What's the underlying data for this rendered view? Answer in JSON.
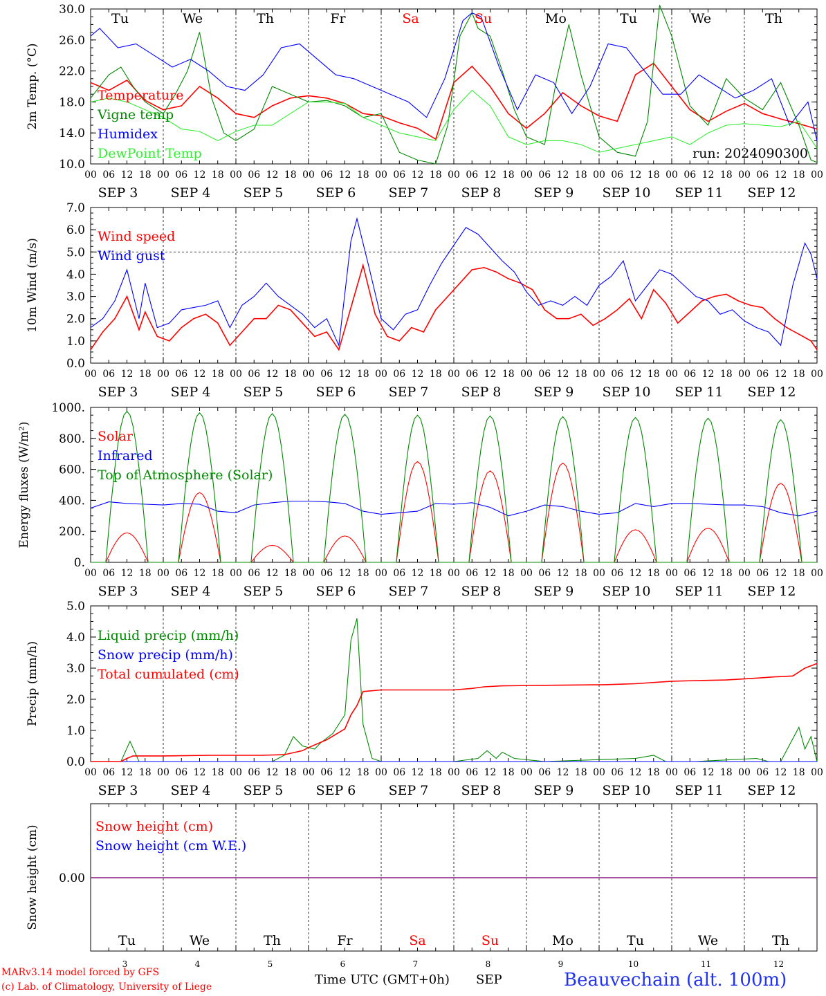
{
  "days": [
    {
      "name": "Tu",
      "weekend": false,
      "date": "SEP   3",
      "num": "3"
    },
    {
      "name": "We",
      "weekend": false,
      "date": "SEP   4",
      "num": "4"
    },
    {
      "name": "Th",
      "weekend": false,
      "date": "SEP   5",
      "num": "5"
    },
    {
      "name": "Fr",
      "weekend": false,
      "date": "SEP   6",
      "num": "6"
    },
    {
      "name": "Sa",
      "weekend": true,
      "date": "SEP   7",
      "num": "7"
    },
    {
      "name": "Su",
      "weekend": true,
      "date": "SEP   8",
      "num": "8"
    },
    {
      "name": "Mo",
      "weekend": false,
      "date": "SEP   9",
      "num": "9"
    },
    {
      "name": "Tu",
      "weekend": false,
      "date": "SEP 10",
      "num": "10"
    },
    {
      "name": "We",
      "weekend": false,
      "date": "SEP 11",
      "num": "11"
    },
    {
      "name": "Th",
      "weekend": false,
      "date": "SEP 12",
      "num": "12"
    }
  ],
  "hour_ticks": [
    "00",
    "06",
    "12",
    "18"
  ],
  "run_label": "run: 2024090300",
  "footer": {
    "model": "MARv3.14 model forced by GFS",
    "credit": "(c) Lab. of Climatology, University of Liege",
    "xaxis": "Time UTC (GMT+0h)",
    "month": "SEP",
    "station": "Beauvechain (alt. 100m)"
  },
  "colors": {
    "red": "#ff0000",
    "green": "#008800",
    "blue": "#0000ff",
    "light_green": "#33ee33",
    "purple": "#8844aa"
  },
  "chart_data": [
    {
      "type": "line",
      "ylabel": "2m Temp. (°C)",
      "ylim": [
        10,
        30
      ],
      "yticks": [
        "10.0",
        "14.0",
        "18.0",
        "22.0",
        "26.0",
        "30.0"
      ],
      "x_unit": "hours since Sep 3 00 UTC",
      "series": [
        {
          "name": "Temperature",
          "color": "#ff0000",
          "x": [
            0,
            6,
            12,
            18,
            24,
            30,
            36,
            42,
            48,
            54,
            60,
            66,
            72,
            78,
            84,
            90,
            96,
            102,
            108,
            114,
            120,
            126,
            132,
            138,
            144,
            150,
            156,
            162,
            168,
            174,
            180,
            186,
            192,
            198,
            204,
            210,
            216,
            222,
            228,
            234,
            240
          ],
          "y": [
            20.5,
            19.5,
            20.8,
            18.2,
            17.0,
            17.5,
            20.0,
            18.5,
            16.5,
            16.0,
            17.5,
            18.5,
            18.8,
            18.5,
            17.8,
            16.5,
            16.2,
            15.3,
            14.6,
            13.2,
            20.5,
            22.6,
            20.0,
            16.5,
            14.6,
            16.5,
            19.2,
            17.5,
            16.2,
            15.5,
            21.5,
            23.0,
            20.0,
            17.0,
            15.5,
            16.8,
            17.8,
            16.5,
            15.8,
            15.2,
            14.5
          ]
        },
        {
          "name": "Vigne temp",
          "color": "#008800",
          "x": [
            0,
            6,
            10,
            14,
            18,
            24,
            28,
            32,
            36,
            40,
            44,
            48,
            54,
            60,
            66,
            72,
            78,
            84,
            90,
            96,
            102,
            108,
            114,
            118,
            122,
            126,
            128,
            132,
            136,
            140,
            144,
            150,
            154,
            158,
            162,
            168,
            174,
            180,
            184,
            188,
            192,
            198,
            204,
            210,
            216,
            222,
            228,
            234,
            238,
            240
          ],
          "y": [
            18.5,
            21.5,
            22.5,
            20.0,
            18.0,
            16.5,
            19.0,
            22.0,
            27.0,
            18.5,
            14.0,
            13.0,
            14.5,
            20.0,
            19.0,
            18.0,
            18.2,
            17.5,
            16.0,
            16.5,
            11.5,
            10.5,
            10.0,
            15.0,
            26.5,
            29.5,
            27.5,
            26.5,
            22.0,
            17.0,
            13.5,
            12.5,
            21.0,
            28.0,
            21.5,
            13.5,
            11.5,
            11.0,
            15.5,
            30.5,
            26.5,
            17.5,
            15.0,
            21.0,
            18.5,
            17.0,
            20.5,
            15.0,
            10.5,
            10.2
          ]
        },
        {
          "name": "Humidex",
          "color": "#0000ff",
          "x": [
            0,
            3,
            9,
            15,
            21,
            27,
            33,
            39,
            45,
            51,
            57,
            63,
            69,
            75,
            81,
            87,
            93,
            99,
            105,
            111,
            117,
            123,
            126,
            129,
            135,
            141,
            147,
            153,
            159,
            165,
            171,
            177,
            183,
            189,
            195,
            201,
            207,
            213,
            219,
            225,
            231,
            237,
            240
          ],
          "y": [
            26.5,
            27.5,
            25.0,
            25.5,
            24.0,
            22.5,
            23.5,
            22.0,
            20.0,
            19.5,
            21.5,
            25.0,
            25.5,
            23.5,
            21.5,
            21.0,
            20.0,
            19.0,
            18.0,
            16.0,
            21.0,
            28.5,
            29.5,
            29.0,
            22.5,
            17.0,
            21.5,
            20.5,
            16.5,
            20.0,
            25.5,
            25.0,
            22.0,
            19.0,
            19.0,
            21.5,
            20.0,
            18.5,
            19.5,
            21.0,
            15.0,
            18.0,
            13.0
          ]
        },
        {
          "name": "DewPoint Temp",
          "color": "#33ee33",
          "x": [
            0,
            6,
            12,
            18,
            24,
            30,
            36,
            42,
            48,
            54,
            60,
            66,
            72,
            78,
            84,
            90,
            96,
            102,
            108,
            114,
            120,
            126,
            132,
            138,
            144,
            150,
            156,
            162,
            168,
            174,
            180,
            186,
            192,
            198,
            204,
            210,
            216,
            222,
            228,
            234,
            240
          ],
          "y": [
            18.0,
            18.5,
            18.0,
            17.0,
            16.0,
            14.5,
            14.2,
            13.0,
            14.2,
            15.0,
            15.0,
            16.5,
            18.0,
            18.0,
            17.8,
            16.0,
            15.0,
            14.0,
            13.5,
            13.0,
            17.0,
            19.5,
            17.5,
            13.5,
            12.5,
            13.0,
            13.0,
            12.5,
            11.5,
            12.0,
            12.5,
            13.0,
            13.5,
            12.5,
            14.0,
            15.0,
            15.2,
            15.0,
            14.8,
            15.5,
            12.0
          ]
        }
      ]
    },
    {
      "type": "line",
      "ylabel": "10m Wind (m/s)",
      "ylim": [
        0,
        7
      ],
      "yticks": [
        "0.0",
        "1.0",
        "2.0",
        "3.0",
        "4.0",
        "5.0",
        "6.0",
        "7.0"
      ],
      "ref_line": 5.0,
      "series": [
        {
          "name": "Wind speed",
          "color": "#ff0000",
          "x": [
            0,
            4,
            8,
            12,
            16,
            18,
            22,
            26,
            30,
            34,
            38,
            42,
            46,
            50,
            54,
            58,
            62,
            66,
            70,
            74,
            78,
            82,
            86,
            90,
            94,
            98,
            102,
            106,
            110,
            114,
            118,
            122,
            126,
            130,
            134,
            138,
            142,
            146,
            150,
            154,
            158,
            162,
            166,
            170,
            174,
            178,
            182,
            186,
            190,
            194,
            198,
            202,
            206,
            210,
            214,
            218,
            222,
            226,
            230,
            234,
            238,
            240
          ],
          "y": [
            0.6,
            1.4,
            2.0,
            3.0,
            1.5,
            2.3,
            1.2,
            1.0,
            1.6,
            2.0,
            2.2,
            1.8,
            0.8,
            1.4,
            2.0,
            2.0,
            2.6,
            2.4,
            1.8,
            1.2,
            1.4,
            0.6,
            2.5,
            4.4,
            2.2,
            1.2,
            1.0,
            1.6,
            1.4,
            2.4,
            3.0,
            3.6,
            4.2,
            4.3,
            4.1,
            3.8,
            3.6,
            3.3,
            2.4,
            2.0,
            2.0,
            2.2,
            1.7,
            2.0,
            2.4,
            2.9,
            2.0,
            3.3,
            2.7,
            1.8,
            2.3,
            2.8,
            3.0,
            3.1,
            2.8,
            2.6,
            2.5,
            2.0,
            1.6,
            1.3,
            1.0,
            0.6
          ]
        },
        {
          "name": "Wind gust",
          "color": "#0000ff",
          "x": [
            0,
            4,
            8,
            12,
            16,
            18,
            22,
            26,
            30,
            34,
            38,
            42,
            46,
            50,
            54,
            58,
            62,
            66,
            70,
            74,
            78,
            82,
            86,
            88,
            92,
            96,
            100,
            104,
            108,
            112,
            116,
            120,
            124,
            128,
            132,
            136,
            140,
            144,
            148,
            152,
            156,
            160,
            164,
            168,
            172,
            176,
            180,
            184,
            188,
            192,
            196,
            200,
            204,
            208,
            212,
            216,
            220,
            224,
            228,
            232,
            236,
            238,
            240
          ],
          "y": [
            1.6,
            2.0,
            2.8,
            4.2,
            2.0,
            3.6,
            1.6,
            1.8,
            2.4,
            2.5,
            2.6,
            2.8,
            1.6,
            2.6,
            3.0,
            3.6,
            3.0,
            2.6,
            2.2,
            1.6,
            2.0,
            0.8,
            5.5,
            6.5,
            4.3,
            2.0,
            1.5,
            2.2,
            2.4,
            3.5,
            4.5,
            5.3,
            6.1,
            5.8,
            5.2,
            4.6,
            4.1,
            3.2,
            2.6,
            2.8,
            2.6,
            3.0,
            2.6,
            3.5,
            3.9,
            4.6,
            2.8,
            3.5,
            4.2,
            4.0,
            3.5,
            3.0,
            2.8,
            2.2,
            2.4,
            1.9,
            1.6,
            1.4,
            0.8,
            3.5,
            5.4,
            4.9,
            3.8
          ]
        }
      ]
    },
    {
      "type": "line",
      "ylabel": "Energy fluxes (W/m²)",
      "ylim": [
        0,
        1000
      ],
      "yticks": [
        "0.",
        "200.",
        "400.",
        "600.",
        "800.",
        "1000."
      ],
      "series": [
        {
          "name": "Solar",
          "color": "#ff0000",
          "peaks": [
            190,
            450,
            110,
            170,
            650,
            590,
            640,
            210,
            220,
            510
          ]
        },
        {
          "name": "Infrared",
          "color": "#0000ff",
          "x": [
            0,
            6,
            12,
            18,
            24,
            30,
            36,
            42,
            48,
            54,
            60,
            66,
            72,
            78,
            84,
            90,
            96,
            102,
            108,
            114,
            120,
            126,
            132,
            138,
            144,
            150,
            156,
            162,
            168,
            174,
            180,
            186,
            192,
            198,
            204,
            210,
            216,
            222,
            228,
            234,
            240
          ],
          "y": [
            350,
            390,
            380,
            375,
            370,
            380,
            375,
            330,
            320,
            370,
            385,
            395,
            395,
            390,
            380,
            330,
            310,
            320,
            330,
            380,
            375,
            385,
            355,
            300,
            330,
            370,
            360,
            330,
            310,
            320,
            380,
            360,
            380,
            380,
            375,
            370,
            370,
            360,
            320,
            300,
            330
          ]
        },
        {
          "name": "Top of Atmosphere (Solar)",
          "color": "#008800",
          "peaks": [
            975,
            965,
            960,
            955,
            950,
            945,
            940,
            935,
            930,
            920
          ]
        }
      ]
    },
    {
      "type": "line",
      "ylabel": "Precip (mm/h)",
      "ylim": [
        0,
        5
      ],
      "yticks": [
        "0.0",
        "1.0",
        "2.0",
        "3.0",
        "4.0",
        "5.0"
      ],
      "series": [
        {
          "name": "Liquid precip (mm/h)",
          "color": "#008800",
          "x": [
            0,
            10,
            13,
            16,
            24,
            60,
            64,
            67,
            70,
            74,
            76,
            80,
            84,
            86,
            88,
            90,
            93,
            96,
            120,
            128,
            131,
            134,
            136,
            140,
            150,
            180,
            186,
            190,
            194,
            200,
            220,
            224,
            228,
            234,
            236,
            238,
            240
          ],
          "y": [
            0,
            0,
            0.65,
            0,
            0,
            0,
            0.2,
            0.8,
            0.5,
            0.4,
            0.6,
            0.9,
            1.5,
            3.9,
            4.6,
            1.2,
            0.1,
            0,
            0,
            0.1,
            0.35,
            0.1,
            0.3,
            0.1,
            0,
            0.1,
            0.2,
            0,
            0,
            0,
            0.1,
            0,
            0,
            1.1,
            0.4,
            0.8,
            0
          ]
        },
        {
          "name": "Snow precip (mm/h)",
          "color": "#0000ff",
          "x": [
            0,
            240
          ],
          "y": [
            0,
            0
          ]
        },
        {
          "name": "Total cumulated (cm)",
          "color": "#ff0000",
          "x": [
            0,
            10,
            12,
            14,
            24,
            40,
            56,
            64,
            70,
            72,
            78,
            84,
            86,
            88,
            90,
            96,
            110,
            120,
            126,
            130,
            136,
            150,
            170,
            180,
            192,
            200,
            210,
            220,
            226,
            232,
            236,
            240
          ],
          "y": [
            0,
            0,
            0.1,
            0.18,
            0.18,
            0.2,
            0.2,
            0.22,
            0.35,
            0.45,
            0.7,
            1.05,
            1.5,
            1.8,
            2.25,
            2.3,
            2.3,
            2.3,
            2.35,
            2.4,
            2.43,
            2.45,
            2.47,
            2.5,
            2.58,
            2.6,
            2.62,
            2.68,
            2.72,
            2.75,
            3.0,
            3.15
          ]
        }
      ]
    },
    {
      "type": "line",
      "ylabel": "Snow height (cm)",
      "yticks": [
        "0.00"
      ],
      "series": [
        {
          "name": "Snow height (cm)",
          "color": "#ff0000",
          "x": [
            0,
            240
          ],
          "y": [
            0,
            0
          ]
        },
        {
          "name": "Snow height (cm W.E.)",
          "color": "#0000ff",
          "x": [
            0,
            240
          ],
          "y": [
            0,
            0
          ]
        }
      ]
    }
  ]
}
